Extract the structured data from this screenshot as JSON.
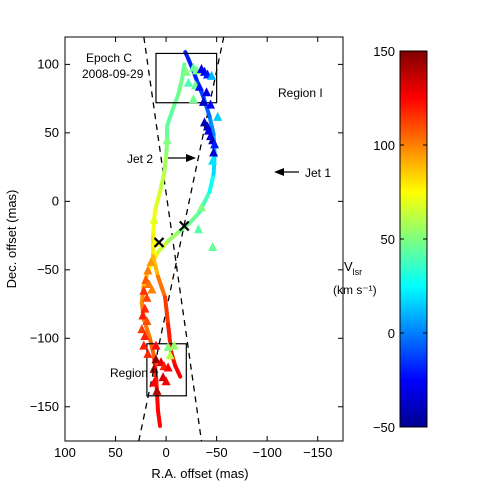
{
  "chart_data": {
    "type": "scatter",
    "annotations": {
      "epoch": "Epoch C",
      "date": "2008-09-29",
      "region1": "Region I",
      "region2": "Region II",
      "jet1": "Jet 1",
      "jet2": "Jet 2"
    },
    "xlabel": "R.A. offset (mas)",
    "ylabel": "Dec. offset (mas)",
    "xlim": [
      100,
      -175
    ],
    "ylim": [
      -175,
      120
    ],
    "xticks": [
      100,
      50,
      0,
      -50,
      -100,
      -150
    ],
    "xtick_labels": [
      "100",
      "50",
      "0",
      "−50",
      "−100",
      "−150"
    ],
    "yticks": [
      100,
      50,
      0,
      -50,
      -100,
      -150
    ],
    "ytick_labels": [
      "100",
      "50",
      "0",
      "−50",
      "−100",
      "−150"
    ],
    "grid": false,
    "colorbar": {
      "label_main": "V",
      "label_sub": "lsr",
      "unit": "(km s⁻¹)",
      "range": [
        -50,
        150
      ],
      "ticks": [
        150,
        100,
        50,
        0,
        -50
      ],
      "tick_labels": [
        "150",
        "100",
        "50",
        "0",
        "−50"
      ],
      "colormap": "jet"
    },
    "jet_lines": {
      "style": "dashed",
      "jet1": [
        [
          27,
          -175
        ],
        [
          -57,
          120
        ]
      ],
      "jet2": [
        [
          22,
          120
        ],
        [
          -35,
          -175
        ]
      ]
    },
    "centers": [
      [
        7,
        -30
      ],
      [
        -18,
        -18
      ]
    ],
    "regions": [
      {
        "name": "Region I",
        "x": [
          10,
          -50
        ],
        "y": [
          72,
          108
        ]
      },
      {
        "name": "Region II",
        "x": [
          19,
          -20
        ],
        "y": [
          -104,
          -142
        ]
      }
    ],
    "curve_stroke_width": 4,
    "curve": [
      {
        "x": 6,
        "y": -164,
        "v": 123
      },
      {
        "x": 8,
        "y": -153,
        "v": 125
      },
      {
        "x": 9,
        "y": -140,
        "v": 124
      },
      {
        "x": 10,
        "y": -127,
        "v": 120
      },
      {
        "x": 12,
        "y": -113,
        "v": 110
      },
      {
        "x": 16,
        "y": -100,
        "v": 103
      },
      {
        "x": 22,
        "y": -86,
        "v": 101
      },
      {
        "x": 24,
        "y": -74,
        "v": 100
      },
      {
        "x": 22,
        "y": -61,
        "v": 95
      },
      {
        "x": 17,
        "y": -49,
        "v": 83
      },
      {
        "x": 8,
        "y": -37,
        "v": 70
      },
      {
        "x": -2,
        "y": -29,
        "v": 60
      },
      {
        "x": -13,
        "y": -22,
        "v": 52
      },
      {
        "x": -23,
        "y": -16,
        "v": 47
      },
      {
        "x": -33,
        "y": -8,
        "v": 45
      },
      {
        "x": -43,
        "y": 7,
        "v": 33
      },
      {
        "x": -47,
        "y": 20,
        "v": 22
      },
      {
        "x": -48,
        "y": 34,
        "v": 14
      },
      {
        "x": -47,
        "y": 49,
        "v": 6
      },
      {
        "x": -43,
        "y": 62,
        "v": -2
      },
      {
        "x": -37,
        "y": 76,
        "v": -8
      },
      {
        "x": -30,
        "y": 89,
        "v": -17
      },
      {
        "x": -26,
        "y": 97,
        "v": -19
      },
      {
        "x": -22,
        "y": 104,
        "v": -20
      },
      {
        "x": -19,
        "y": 109,
        "v": -18
      },
      null,
      {
        "x": -18,
        "y": 100,
        "v": 45
      },
      {
        "x": -16,
        "y": 90,
        "v": 46
      },
      {
        "x": -12,
        "y": 78,
        "v": 47
      },
      {
        "x": -6,
        "y": 66,
        "v": 45
      },
      {
        "x": -1,
        "y": 55,
        "v": 42
      },
      {
        "x": -1,
        "y": 43,
        "v": 48
      },
      {
        "x": 0,
        "y": 33,
        "v": 55
      },
      {
        "x": 2,
        "y": 20,
        "v": 60
      },
      {
        "x": 6,
        "y": 7,
        "v": 65
      },
      {
        "x": 11,
        "y": -7,
        "v": 70
      },
      {
        "x": 13,
        "y": -25,
        "v": 75
      },
      {
        "x": 13,
        "y": -40,
        "v": 82
      },
      {
        "x": 8,
        "y": -55,
        "v": 95
      },
      {
        "x": 1,
        "y": -70,
        "v": 110
      },
      {
        "x": -2,
        "y": -90,
        "v": 118
      },
      {
        "x": -5,
        "y": -110,
        "v": 122
      },
      {
        "x": -9,
        "y": -120,
        "v": 125
      },
      {
        "x": -14,
        "y": -128,
        "v": 126
      }
    ],
    "points": [
      {
        "x": -27,
        "y": 98,
        "v": 45
      },
      {
        "x": -20,
        "y": 95,
        "v": 50
      },
      {
        "x": -30,
        "y": 96,
        "v": 48
      },
      {
        "x": -35,
        "y": 97,
        "v": -30
      },
      {
        "x": -38,
        "y": 95,
        "v": -25
      },
      {
        "x": -41,
        "y": 93,
        "v": -20
      },
      {
        "x": -45,
        "y": 92,
        "v": 10
      },
      {
        "x": -22,
        "y": 87,
        "v": 40
      },
      {
        "x": -29,
        "y": 85,
        "v": 45
      },
      {
        "x": -33,
        "y": 84,
        "v": -22
      },
      {
        "x": -40,
        "y": 80,
        "v": -30
      },
      {
        "x": -27,
        "y": 75,
        "v": 47
      },
      {
        "x": -37,
        "y": 73,
        "v": -35
      },
      {
        "x": -44,
        "y": 71,
        "v": -25
      },
      {
        "x": -51,
        "y": 62,
        "v": 15
      },
      {
        "x": -38,
        "y": 58,
        "v": -40
      },
      {
        "x": -41,
        "y": 55,
        "v": -38
      },
      {
        "x": -42,
        "y": 52,
        "v": -32
      },
      {
        "x": -44,
        "y": 48,
        "v": -28
      },
      {
        "x": -46,
        "y": 45,
        "v": -40
      },
      {
        "x": -48,
        "y": 42,
        "v": -20
      },
      {
        "x": -47,
        "y": 36,
        "v": -35
      },
      {
        "x": -46,
        "y": 30,
        "v": 20
      },
      {
        "x": -1,
        "y": 45,
        "v": 50
      },
      {
        "x": 12,
        "y": -13,
        "v": 70
      },
      {
        "x": -35,
        "y": -4,
        "v": 50
      },
      {
        "x": -32,
        "y": -20,
        "v": 42
      },
      {
        "x": -46,
        "y": -33,
        "v": 45
      },
      {
        "x": 11,
        "y": -30,
        "v": 75
      },
      {
        "x": 15,
        "y": -44,
        "v": 95
      },
      {
        "x": 18,
        "y": -50,
        "v": 100
      },
      {
        "x": 20,
        "y": -57,
        "v": 108
      },
      {
        "x": 17,
        "y": -60,
        "v": 102
      },
      {
        "x": 22,
        "y": -65,
        "v": 115
      },
      {
        "x": 14,
        "y": -64,
        "v": 100
      },
      {
        "x": 19,
        "y": -70,
        "v": 112
      },
      {
        "x": 21,
        "y": -78,
        "v": 117
      },
      {
        "x": 23,
        "y": -83,
        "v": 120
      },
      {
        "x": 19,
        "y": -87,
        "v": 110
      },
      {
        "x": 24,
        "y": -93,
        "v": 113
      },
      {
        "x": 21,
        "y": -98,
        "v": 118
      },
      {
        "x": 22,
        "y": -105,
        "v": 120
      },
      {
        "x": 18,
        "y": -111,
        "v": 118
      },
      {
        "x": 10,
        "y": -105,
        "v": 123
      },
      {
        "x": -2,
        "y": -106,
        "v": 50
      },
      {
        "x": -8,
        "y": -105,
        "v": 55
      },
      {
        "x": -4,
        "y": -112,
        "v": 62
      },
      {
        "x": 10,
        "y": -115,
        "v": 145
      },
      {
        "x": 12,
        "y": -122,
        "v": 140
      },
      {
        "x": 5,
        "y": -117,
        "v": 130
      },
      {
        "x": 2,
        "y": -120,
        "v": 120
      },
      {
        "x": -2,
        "y": -121,
        "v": 125
      },
      {
        "x": 3,
        "y": -128,
        "v": 135
      },
      {
        "x": 0,
        "y": -131,
        "v": 127
      },
      {
        "x": 9,
        "y": -138,
        "v": 140
      },
      {
        "x": 12,
        "y": -132,
        "v": 125
      }
    ]
  }
}
